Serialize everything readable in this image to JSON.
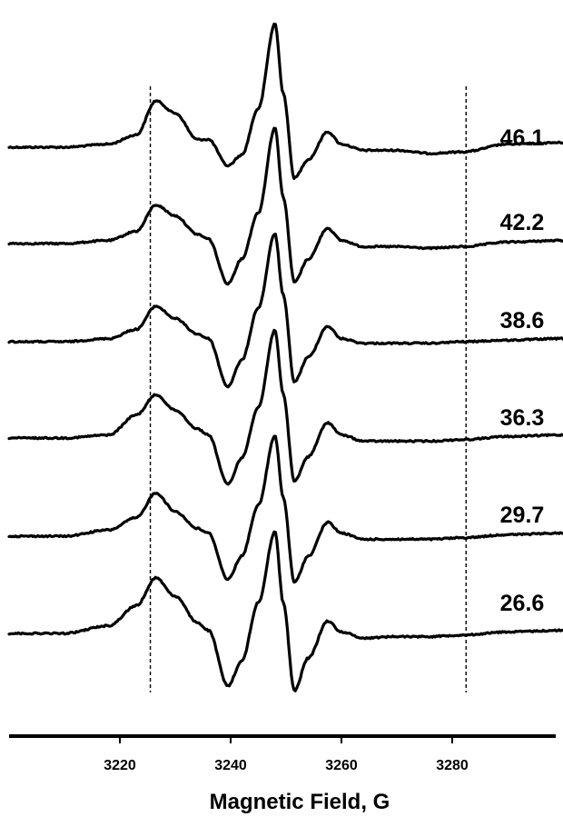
{
  "chart_data": {
    "type": "line",
    "title": "",
    "xlabel": "Magnetic Field, G",
    "ylabel": "",
    "xlim": [
      3200,
      3300
    ],
    "xticks": [
      3220,
      3240,
      3260,
      3280
    ],
    "grid": false,
    "reference_lines_x": [
      3225.5,
      3282.5
    ],
    "series_shape_x": [
      3200,
      3210,
      3218,
      3223,
      3226.5,
      3230,
      3234,
      3236,
      3239.5,
      3242,
      3245,
      3248,
      3249.5,
      3251.5,
      3254,
      3257.5,
      3260,
      3264,
      3270,
      3276,
      3282,
      3290,
      3300
    ],
    "series": [
      {
        "name": "46.1",
        "y_relative": [
          0,
          0,
          0.2,
          0.8,
          3.0,
          2.2,
          0.5,
          0.5,
          -1.2,
          -0.5,
          2.5,
          8.0,
          3.5,
          -2.0,
          -0.8,
          1.0,
          0.2,
          -0.2,
          -0.2,
          -0.4,
          -0.3,
          0.2,
          0.3
        ]
      },
      {
        "name": "42.2",
        "y_relative": [
          0,
          0,
          0.2,
          0.8,
          2.5,
          1.8,
          0.6,
          0.3,
          -2.6,
          -1.0,
          2.0,
          7.5,
          3.0,
          -2.5,
          -1.0,
          1.0,
          0.2,
          -0.2,
          -0.2,
          -0.3,
          -0.2,
          0.1,
          0.2
        ]
      },
      {
        "name": "38.6",
        "y_relative": [
          0,
          0,
          0.2,
          0.8,
          2.3,
          1.5,
          0.5,
          0.2,
          -2.9,
          -1.2,
          2.2,
          7.0,
          3.0,
          -2.6,
          -1.0,
          1.0,
          0.2,
          -0.1,
          -0.1,
          -0.1,
          0.0,
          0.1,
          0.2
        ]
      },
      {
        "name": "36.3",
        "y_relative": [
          0,
          0,
          0.2,
          1.5,
          2.8,
          1.8,
          0.6,
          0.2,
          -3.0,
          -1.3,
          2.0,
          7.0,
          2.8,
          -2.8,
          -1.2,
          1.0,
          0.2,
          -0.2,
          -0.2,
          -0.2,
          -0.1,
          0.1,
          0.2
        ]
      },
      {
        "name": "29.7",
        "y_relative": [
          0,
          0,
          0.4,
          1.2,
          2.8,
          1.6,
          0.5,
          0.2,
          -2.8,
          -1.3,
          2.0,
          6.5,
          2.5,
          -3.0,
          -1.3,
          0.9,
          0.2,
          -0.2,
          -0.2,
          -0.2,
          -0.1,
          0.1,
          0.2
        ]
      },
      {
        "name": "26.6",
        "y_relative": [
          0,
          0,
          0.5,
          1.8,
          3.6,
          2.4,
          0.7,
          0.2,
          -3.4,
          -1.8,
          2.0,
          6.6,
          2.0,
          -3.7,
          -1.6,
          0.8,
          0.1,
          -0.3,
          -0.2,
          -0.2,
          -0.1,
          0.1,
          0.2
        ]
      }
    ]
  }
}
